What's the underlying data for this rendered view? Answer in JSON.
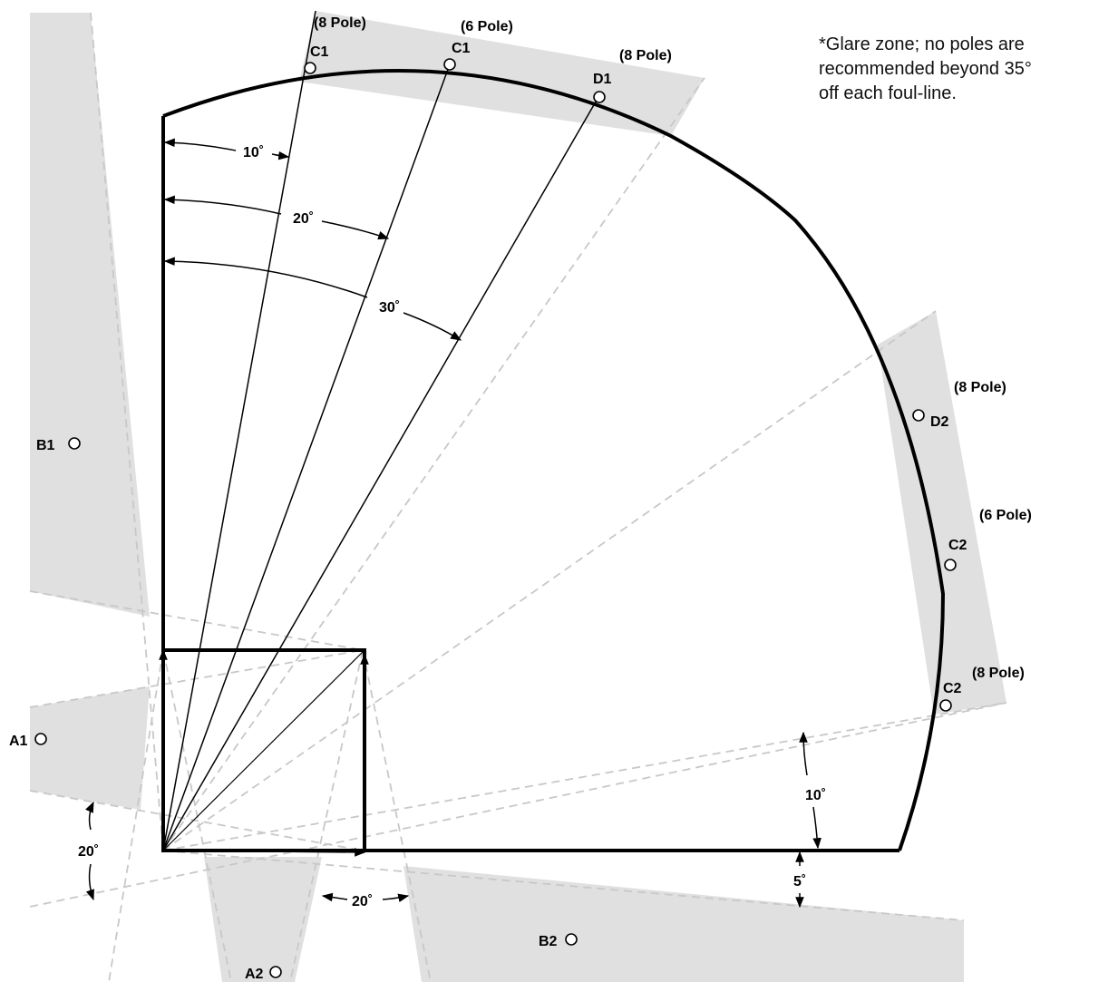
{
  "note": {
    "lines": [
      "*Glare zone; no poles are",
      "recommended beyond 35°",
      "off each foul-line."
    ]
  },
  "poles": {
    "c1_8": {
      "name": "C1",
      "tag": "(8 Pole)"
    },
    "c1_6": {
      "name": "C1",
      "tag": "(6 Pole)"
    },
    "d1_8": {
      "name": "D1",
      "tag": "(8 Pole)"
    },
    "d2_8": {
      "name": "D2",
      "tag": "(8 Pole)"
    },
    "c2_6": {
      "name": "C2",
      "tag": "(6 Pole)"
    },
    "c2_8": {
      "name": "C2",
      "tag": "(8 Pole)"
    },
    "b1": {
      "name": "B1"
    },
    "a1": {
      "name": "A1"
    },
    "a2": {
      "name": "A2"
    },
    "b2": {
      "name": "B2"
    }
  },
  "angles": {
    "ten_left": "10˚",
    "twenty_left": "20˚",
    "thirty": "30˚",
    "ten_right": "10˚",
    "five": "5˚",
    "twenty_bottom": "20˚",
    "twenty_side": "20˚"
  },
  "colors": {
    "glare_zone": "#e0e0e0",
    "field_outline": "#000000",
    "dashed_guides": "#c8c8c8"
  }
}
